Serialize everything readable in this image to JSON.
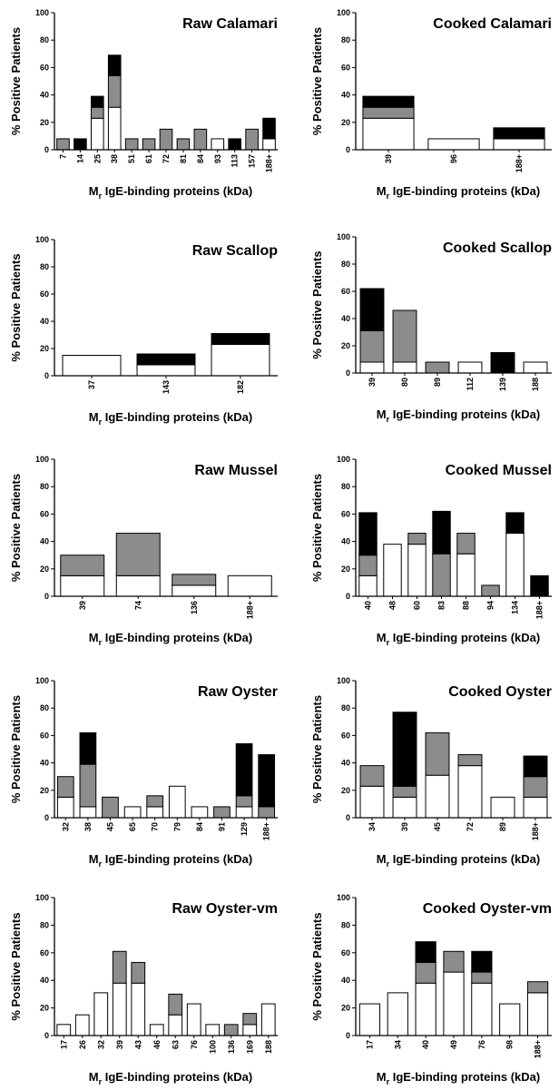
{
  "colors": {
    "white_segment": "#ffffff",
    "gray_segment": "#8c8c8c",
    "black_segment": "#000000",
    "axis": "#000000"
  },
  "chart_data": [
    {
      "type": "bar",
      "stacked": true,
      "title": "Raw Calamari",
      "ylabel": "% Positive Patients",
      "xlabel_main": "M",
      "xlabel_sub": "r",
      "xlabel_rest": " IgE-binding proteins (kDa)",
      "ylim": [
        0,
        100
      ],
      "yticks": [
        0,
        20,
        40,
        60,
        80,
        100
      ],
      "categories": [
        "7",
        "14",
        "25",
        "38",
        "51",
        "61",
        "72",
        "81",
        "84",
        "93",
        "113",
        "157",
        "188+"
      ],
      "series": [
        {
          "color": "white",
          "values": [
            0,
            0,
            23,
            31,
            0,
            0,
            0,
            0,
            0,
            8,
            0,
            0,
            8
          ]
        },
        {
          "color": "gray",
          "values": [
            8,
            0,
            8,
            23,
            8,
            8,
            15,
            8,
            15,
            0,
            0,
            15,
            0
          ]
        },
        {
          "color": "black",
          "values": [
            0,
            8,
            8,
            15,
            0,
            0,
            0,
            0,
            0,
            0,
            8,
            0,
            15
          ]
        }
      ]
    },
    {
      "type": "bar",
      "stacked": true,
      "title": "Cooked Calamari",
      "ylabel": "% Positive Patients",
      "xlabel_main": "M",
      "xlabel_sub": "r",
      "xlabel_rest": " IgE-binding proteins (kDa)",
      "ylim": [
        0,
        100
      ],
      "yticks": [
        0,
        20,
        40,
        60,
        80,
        100
      ],
      "categories": [
        "39",
        "96",
        "188+"
      ],
      "series": [
        {
          "color": "white",
          "values": [
            23,
            8,
            8
          ]
        },
        {
          "color": "gray",
          "values": [
            8,
            0,
            0
          ]
        },
        {
          "color": "black",
          "values": [
            8,
            0,
            8
          ]
        }
      ]
    },
    {
      "type": "bar",
      "stacked": true,
      "title": "Raw Scallop",
      "ylabel": "% Positive Patients",
      "xlabel_main": "M",
      "xlabel_sub": "r",
      "xlabel_rest": " IgE-binding proteins (kDa)",
      "ylim": [
        0,
        100
      ],
      "yticks": [
        0,
        20,
        40,
        60,
        80,
        100
      ],
      "categories": [
        "37",
        "143",
        "182"
      ],
      "series": [
        {
          "color": "white",
          "values": [
            15,
            8,
            23
          ]
        },
        {
          "color": "gray",
          "values": [
            0,
            0,
            0
          ]
        },
        {
          "color": "black",
          "values": [
            0,
            8,
            8
          ]
        }
      ]
    },
    {
      "type": "bar",
      "stacked": true,
      "title": "Cooked Scallop",
      "ylabel": "% Positive Patients",
      "xlabel_main": "M",
      "xlabel_sub": "r",
      "xlabel_rest": " IgE-binding proteins (kDa)",
      "ylim": [
        0,
        100
      ],
      "yticks": [
        0,
        20,
        40,
        60,
        80,
        100
      ],
      "categories": [
        "39",
        "80",
        "89",
        "112",
        "139",
        "188"
      ],
      "series": [
        {
          "color": "white",
          "values": [
            8,
            8,
            0,
            8,
            0,
            8
          ]
        },
        {
          "color": "gray",
          "values": [
            23,
            38,
            8,
            0,
            0,
            0
          ]
        },
        {
          "color": "black",
          "values": [
            31,
            0,
            0,
            0,
            15,
            0
          ]
        }
      ]
    },
    {
      "type": "bar",
      "stacked": true,
      "title": "Raw Mussel",
      "ylabel": "% Positive Patients",
      "xlabel_main": "M",
      "xlabel_sub": "r",
      "xlabel_rest": " IgE-binding proteins (kDa)",
      "ylim": [
        0,
        100
      ],
      "yticks": [
        0,
        20,
        40,
        60,
        80,
        100
      ],
      "categories": [
        "39",
        "74",
        "136",
        "188+"
      ],
      "series": [
        {
          "color": "white",
          "values": [
            15,
            15,
            8,
            15
          ]
        },
        {
          "color": "gray",
          "values": [
            15,
            31,
            8,
            0
          ]
        },
        {
          "color": "black",
          "values": [
            0,
            0,
            0,
            0
          ]
        }
      ]
    },
    {
      "type": "bar",
      "stacked": true,
      "title": "Cooked Mussel",
      "ylabel": "% Positive Patients",
      "xlabel_main": "M",
      "xlabel_sub": "r",
      "xlabel_rest": " IgE-binding proteins (kDa)",
      "ylim": [
        0,
        100
      ],
      "yticks": [
        0,
        20,
        40,
        60,
        80,
        100
      ],
      "categories": [
        "40",
        "48",
        "60",
        "83",
        "88",
        "94",
        "134",
        "188+"
      ],
      "series": [
        {
          "color": "white",
          "values": [
            15,
            38,
            38,
            0,
            31,
            0,
            46,
            0
          ]
        },
        {
          "color": "gray",
          "values": [
            15,
            0,
            8,
            31,
            15,
            8,
            0,
            0
          ]
        },
        {
          "color": "black",
          "values": [
            31,
            0,
            0,
            31,
            0,
            0,
            15,
            15
          ]
        }
      ]
    },
    {
      "type": "bar",
      "stacked": true,
      "title": "Raw Oyster",
      "ylabel": "% Positive Patients",
      "xlabel_main": "M",
      "xlabel_sub": "r",
      "xlabel_rest": " IgE-binding proteins (kDa)",
      "ylim": [
        0,
        100
      ],
      "yticks": [
        0,
        20,
        40,
        60,
        80,
        100
      ],
      "categories": [
        "32",
        "38",
        "45",
        "65",
        "70",
        "79",
        "84",
        "91",
        "129",
        "188+"
      ],
      "series": [
        {
          "color": "white",
          "values": [
            15,
            8,
            0,
            8,
            8,
            23,
            8,
            0,
            8,
            0
          ]
        },
        {
          "color": "gray",
          "values": [
            15,
            31,
            15,
            0,
            8,
            0,
            0,
            8,
            8,
            8
          ]
        },
        {
          "color": "black",
          "values": [
            0,
            23,
            0,
            0,
            0,
            0,
            0,
            0,
            38,
            38
          ]
        }
      ]
    },
    {
      "type": "bar",
      "stacked": true,
      "title": "Cooked Oyster",
      "ylabel": "% Positive Patients",
      "xlabel_main": "M",
      "xlabel_sub": "r",
      "xlabel_rest": " IgE-binding proteins (kDa)",
      "ylim": [
        0,
        100
      ],
      "yticks": [
        0,
        20,
        40,
        60,
        80,
        100
      ],
      "categories": [
        "34",
        "39",
        "45",
        "72",
        "89",
        "188+"
      ],
      "series": [
        {
          "color": "white",
          "values": [
            23,
            15,
            31,
            38,
            15,
            15
          ]
        },
        {
          "color": "gray",
          "values": [
            15,
            8,
            31,
            8,
            0,
            15
          ]
        },
        {
          "color": "black",
          "values": [
            0,
            54,
            0,
            0,
            0,
            15
          ]
        }
      ]
    },
    {
      "type": "bar",
      "stacked": true,
      "title": "Raw Oyster-vm",
      "ylabel": "% Positive Patients",
      "xlabel_main": "M",
      "xlabel_sub": "r",
      "xlabel_rest": " IgE-binding proteins (kDa)",
      "ylim": [
        0,
        100
      ],
      "yticks": [
        0,
        20,
        40,
        60,
        80,
        100
      ],
      "categories": [
        "17",
        "26",
        "32",
        "39",
        "43",
        "46",
        "63",
        "76",
        "100",
        "136",
        "169",
        "188"
      ],
      "series": [
        {
          "color": "white",
          "values": [
            8,
            15,
            31,
            38,
            38,
            8,
            15,
            23,
            8,
            0,
            8,
            23
          ]
        },
        {
          "color": "gray",
          "values": [
            0,
            0,
            0,
            23,
            15,
            0,
            15,
            0,
            0,
            8,
            8,
            0
          ]
        },
        {
          "color": "black",
          "values": [
            0,
            0,
            0,
            0,
            0,
            0,
            0,
            0,
            0,
            0,
            0,
            0
          ]
        }
      ]
    },
    {
      "type": "bar",
      "stacked": true,
      "title": "Cooked Oyster-vm",
      "ylabel": "% Positive Patients",
      "xlabel_main": "M",
      "xlabel_sub": "r",
      "xlabel_rest": " IgE-binding proteins (kDa)",
      "ylim": [
        0,
        100
      ],
      "yticks": [
        0,
        20,
        40,
        60,
        80,
        100
      ],
      "categories": [
        "17",
        "34",
        "40",
        "49",
        "76",
        "98",
        "188+"
      ],
      "series": [
        {
          "color": "white",
          "values": [
            23,
            31,
            38,
            46,
            38,
            23,
            31
          ]
        },
        {
          "color": "gray",
          "values": [
            0,
            0,
            15,
            15,
            8,
            0,
            8
          ]
        },
        {
          "color": "black",
          "values": [
            0,
            0,
            15,
            0,
            15,
            0,
            0
          ]
        }
      ]
    }
  ]
}
